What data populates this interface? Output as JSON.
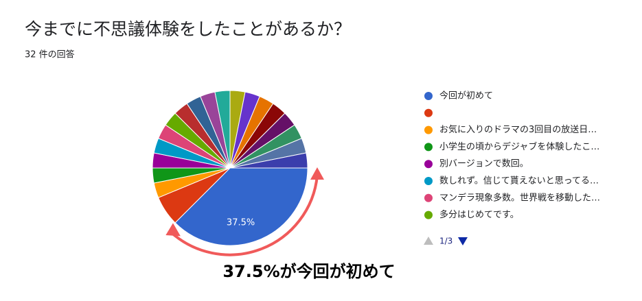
{
  "chart_data": {
    "type": "pie",
    "title": "今までに不思議体験をしたことがあるか？",
    "subtitle": "32 件の回答",
    "categories": [
      "今回が初めて",
      null,
      "お気に入りのドラマの3回目の放送日…",
      "小学生の頃からデジャブを体験したこ…",
      "別バージョンで数回。",
      "数しれず。信じて貰えないと思ってる…",
      "マンデラ現象多数。世界戦を移動した…",
      "多分はじめてです。",
      null,
      null,
      null,
      null,
      null,
      null,
      null,
      null,
      null,
      null,
      null,
      null
    ],
    "values": [
      37.5,
      6.25,
      3.125,
      3.125,
      3.125,
      3.125,
      3.125,
      3.125,
      3.125,
      3.125,
      3.125,
      3.125,
      3.125,
      3.125,
      3.125,
      3.125,
      3.125,
      3.125,
      3.125,
      3.125
    ],
    "value_labels": [
      "37.5%",
      null,
      null,
      null,
      null,
      null,
      null,
      null,
      null,
      null,
      null,
      null,
      null,
      null,
      null,
      null,
      null,
      null,
      null,
      null
    ],
    "colors": [
      "#3366cc",
      "#dc3912",
      "#ff9900",
      "#109618",
      "#990099",
      "#0099c6",
      "#dd4477",
      "#66aa00",
      "#b82e2e",
      "#316395",
      "#994499",
      "#22aa99",
      "#aaaa11",
      "#6633cc",
      "#e67300",
      "#8b0707",
      "#651067",
      "#329262",
      "#5574a6",
      "#3b3eac"
    ],
    "legend_page": "1/3",
    "annotation": "37.5%が今回が初めて"
  }
}
